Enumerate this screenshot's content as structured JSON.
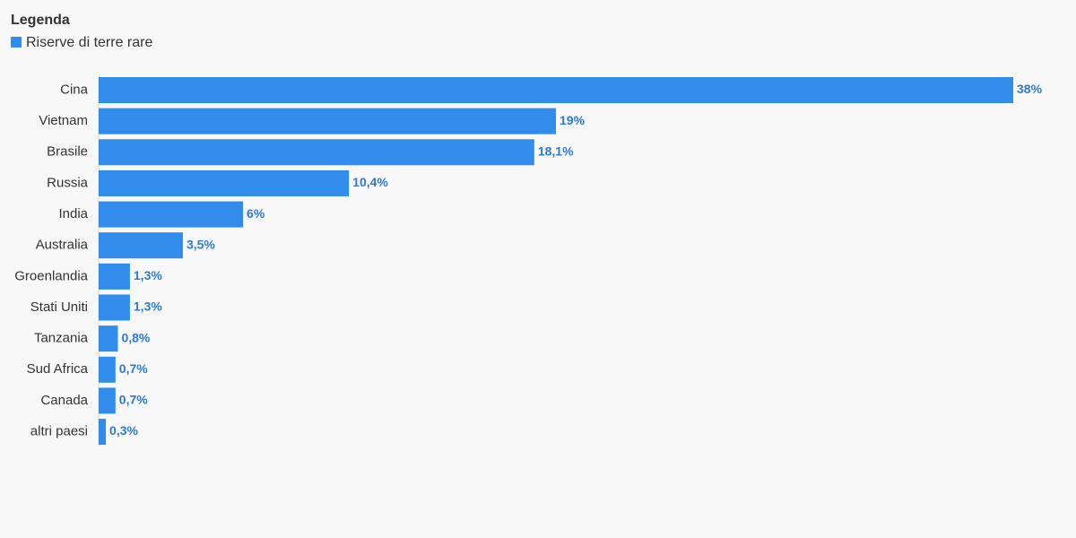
{
  "chart_data": {
    "type": "bar",
    "orientation": "horizontal",
    "legend_title": "Legenda",
    "categories": [
      "Cina",
      "Vietnam",
      "Brasile",
      "Russia",
      "India",
      "Australia",
      "Groenlandia",
      "Stati Uniti",
      "Tanzania",
      "Sud Africa",
      "Canada",
      "altri paesi"
    ],
    "series": [
      {
        "name": "Riserve di terre rare",
        "color": "#318cec",
        "values": [
          38,
          19,
          18.1,
          10.4,
          6,
          3.5,
          1.3,
          1.3,
          0.8,
          0.7,
          0.7,
          0.3
        ],
        "value_labels": [
          "38%",
          "19%",
          "18,1%",
          "10,4%",
          "6%",
          "3,5%",
          "1,3%",
          "1,3%",
          "0,8%",
          "0,7%",
          "0,7%",
          "0,3%"
        ]
      }
    ]
  }
}
